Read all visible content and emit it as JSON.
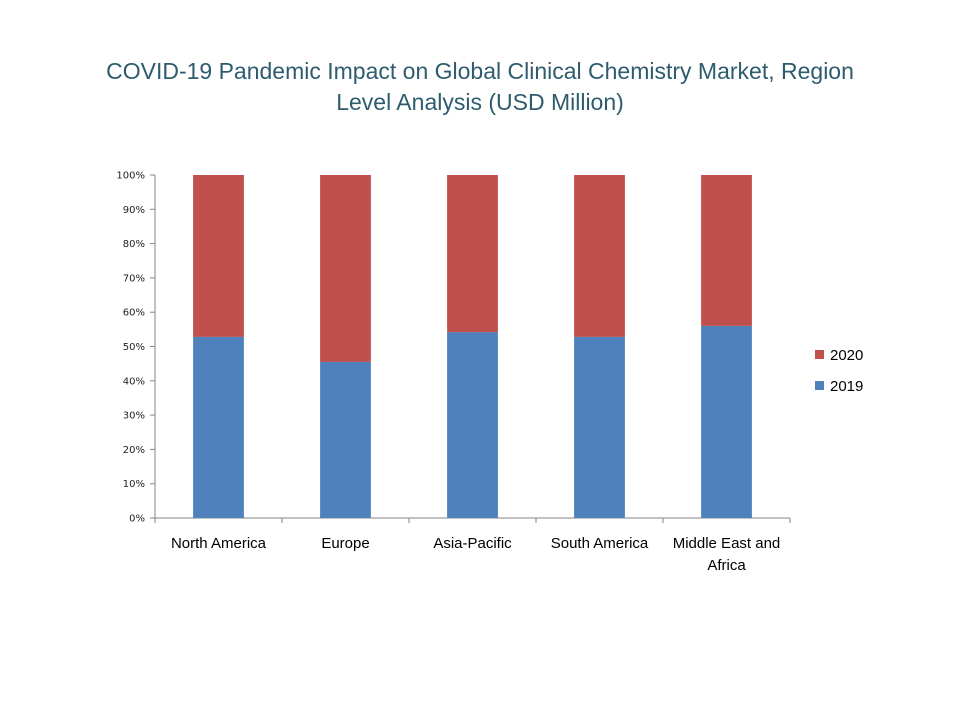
{
  "chart_data": {
    "type": "bar",
    "stacked": "percent",
    "title": "COVID-19 Pandemic Impact on Global Clinical Chemistry Market, Region Level Analysis (USD Million)",
    "title_lines": [
      "COVID-19 Pandemic Impact on Global Clinical Chemistry Market, Region",
      "Level Analysis (USD Million)"
    ],
    "xlabel": "",
    "ylabel": "",
    "ylim": [
      0,
      100
    ],
    "yticks": [
      "0%",
      "10%",
      "20%",
      "30%",
      "40%",
      "50%",
      "60%",
      "70%",
      "80%",
      "90%",
      "100%"
    ],
    "categories": [
      "North America",
      "Europe",
      "Asia-Pacific",
      "South America",
      "Middle East and Africa"
    ],
    "category_lines": [
      [
        "North America"
      ],
      [
        "Europe"
      ],
      [
        "Asia-Pacific"
      ],
      [
        "South America"
      ],
      [
        "Middle East and",
        "Africa"
      ]
    ],
    "series": [
      {
        "name": "2019",
        "color": "#4f81bd",
        "values": [
          52.8,
          45.5,
          54.2,
          52.8,
          56.0
        ]
      },
      {
        "name": "2020",
        "color": "#c0504d",
        "values": [
          47.2,
          54.5,
          45.8,
          47.2,
          44.0
        ]
      }
    ],
    "legend": {
      "position": "right",
      "entries": [
        "2020",
        "2019"
      ]
    },
    "grid": false
  }
}
